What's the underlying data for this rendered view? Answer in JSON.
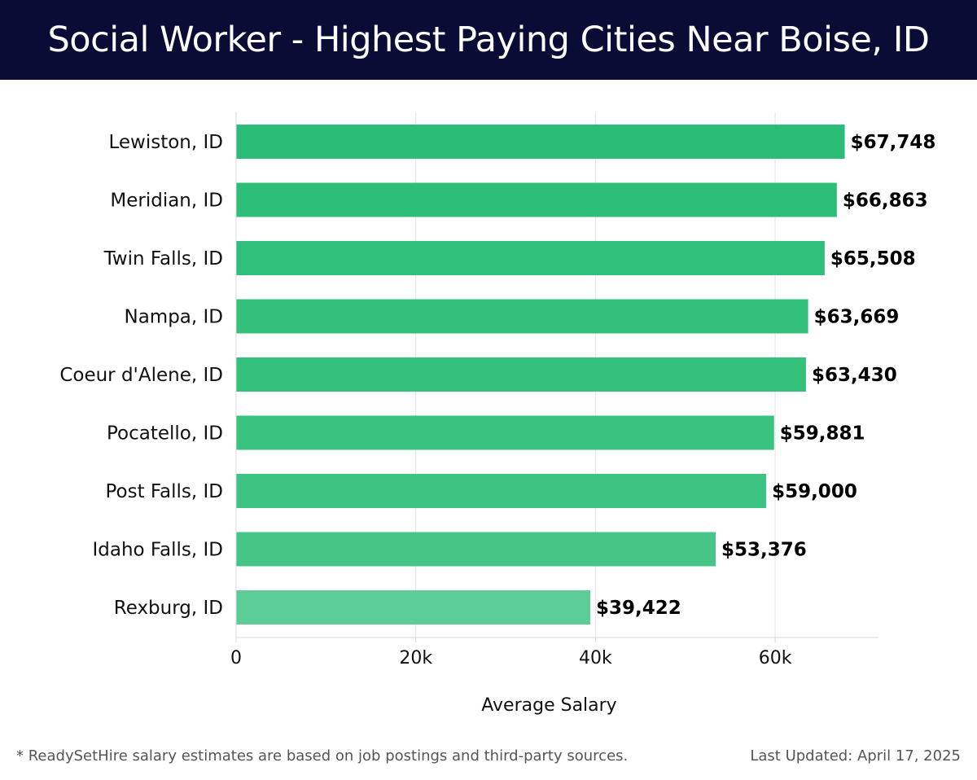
{
  "header": {
    "title": "Social Worker - Highest Paying Cities Near Boise, ID"
  },
  "chart_data": {
    "type": "bar",
    "orientation": "horizontal",
    "title": "Social Worker - Highest Paying Cities Near Boise, ID",
    "xlabel": "Average Salary",
    "ylabel": "",
    "categories": [
      "Lewiston, ID",
      "Meridian, ID",
      "Twin Falls, ID",
      "Nampa, ID",
      "Coeur d'Alene, ID",
      "Pocatello, ID",
      "Post Falls, ID",
      "Idaho Falls, ID",
      "Rexburg, ID"
    ],
    "values": [
      67748,
      66863,
      65508,
      63669,
      63430,
      59881,
      59000,
      53376,
      39422
    ],
    "value_labels": [
      "$67,748",
      "$66,863",
      "$65,508",
      "$63,669",
      "$63,430",
      "$59,881",
      "$59,000",
      "$53,376",
      "$39,422"
    ],
    "xlim": [
      0,
      71500
    ],
    "xticks": [
      0,
      20000,
      40000,
      60000
    ],
    "xtick_labels": [
      "0",
      "20k",
      "40k",
      "60k"
    ],
    "grid": true,
    "bar_colors": [
      "#2bbd77",
      "#2dbe78",
      "#30bf7a",
      "#33c07b",
      "#34c17c",
      "#3ac27f",
      "#3ec482",
      "#45c686",
      "#5ccd96"
    ]
  },
  "footer": {
    "note": "* ReadySetHire salary estimates are based on job postings and third-party sources.",
    "updated": "Last Updated: April 17, 2025"
  }
}
